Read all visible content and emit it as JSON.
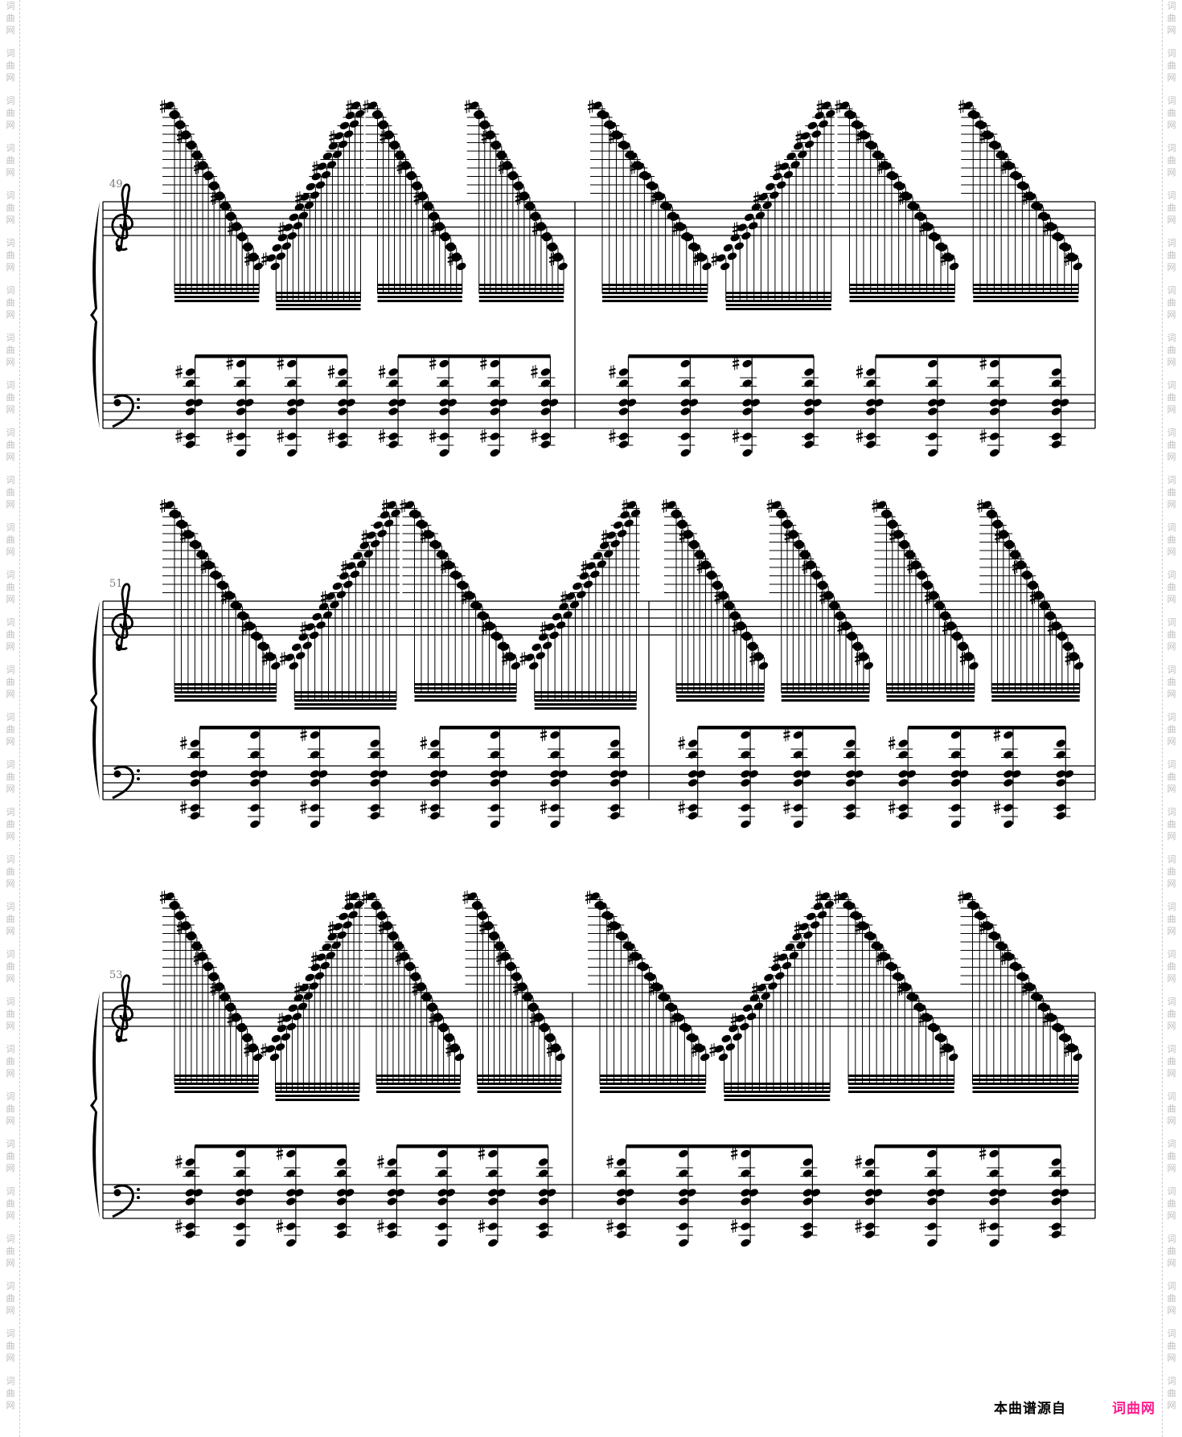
{
  "watermark": {
    "text": "词曲网",
    "color": "#bbbbbb"
  },
  "footer": {
    "source_label": "本曲谱源自",
    "site_name": "词曲网",
    "site_color": "#ff1a8c"
  },
  "score": {
    "clefs": {
      "treble": "treble-clef",
      "bass": "bass-clef"
    },
    "systems": [
      {
        "measure_number": "49",
        "measures": [
          {
            "treble_groups": [
              "down",
              "up",
              "down",
              "down"
            ],
            "bass_chords": 8
          },
          {
            "treble_groups": [
              "down",
              "up",
              "down",
              "down"
            ],
            "bass_chords": 8
          }
        ]
      },
      {
        "measure_number": "51",
        "measures": [
          {
            "treble_groups": [
              "down",
              "up",
              "down",
              "up"
            ],
            "bass_chords": 8
          },
          {
            "treble_groups": [
              "down",
              "down",
              "down",
              "down"
            ],
            "bass_chords": 8
          }
        ]
      },
      {
        "measure_number": "53",
        "measures": [
          {
            "treble_groups": [
              "down",
              "up",
              "down",
              "down"
            ],
            "bass_chords": 8
          },
          {
            "treble_groups": [
              "down",
              "up",
              "down",
              "down"
            ],
            "bass_chords": 8
          }
        ]
      }
    ]
  }
}
